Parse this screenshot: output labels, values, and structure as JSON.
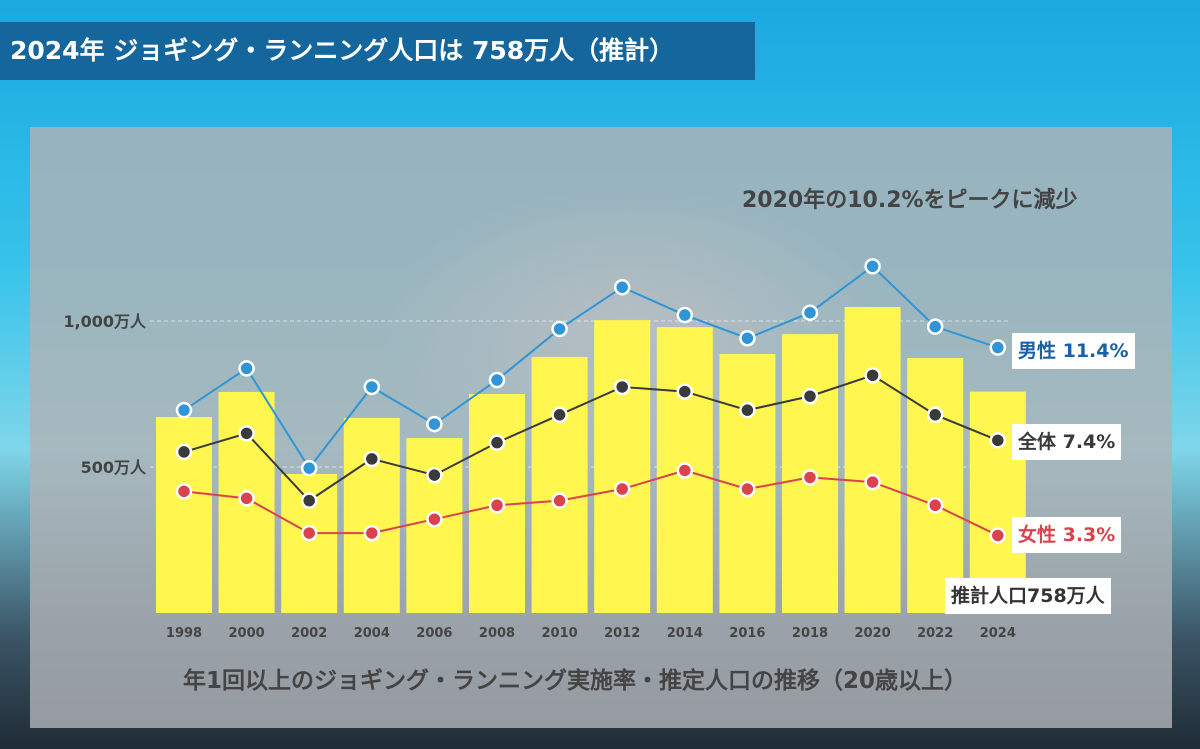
{
  "title": "2024年 ジョギング・ランニング人口は 758万人（推計）",
  "annotation": "2020年の10.2%をピークに減少",
  "caption": "年1回以上のジョギング・ランニング実施率・推定人口の推移（20歳以上）",
  "chart_data": {
    "type": "bar+line",
    "categories": [
      "1998",
      "2000",
      "2002",
      "2004",
      "2006",
      "2008",
      "2010",
      "2012",
      "2014",
      "2016",
      "2018",
      "2020",
      "2022",
      "2024"
    ],
    "bars": {
      "unit": "万人",
      "color": "#fff64f",
      "values": [
        671,
        757,
        476,
        668,
        599,
        750,
        877,
        1003,
        979,
        887,
        955,
        1048,
        873,
        758
      ]
    },
    "y_ticks": [
      {
        "value": 1000,
        "label": "1,000万人"
      },
      {
        "value": 500,
        "label": "500万人"
      }
    ],
    "series": [
      {
        "name": "男性",
        "color": "#2f95d6",
        "end_label": "男性 11.4%",
        "label_color": "#1a5fa8",
        "values": [
          8.7,
          10.5,
          6.2,
          9.7,
          8.1,
          10.0,
          12.2,
          14.0,
          12.8,
          11.8,
          12.9,
          14.9,
          12.3,
          11.4
        ]
      },
      {
        "name": "全体",
        "color": "#3a3a3a",
        "end_label": "全体 7.4%",
        "label_color": "#3a3a3a",
        "values": [
          6.9,
          7.7,
          4.8,
          6.6,
          5.9,
          7.3,
          8.5,
          9.7,
          9.5,
          8.7,
          9.3,
          10.2,
          8.5,
          7.4
        ]
      },
      {
        "name": "女性",
        "color": "#d9434e",
        "end_label": "女性 3.3%",
        "label_color": "#d9434e",
        "values": [
          5.2,
          4.9,
          3.4,
          3.4,
          4.0,
          4.6,
          4.8,
          5.3,
          6.1,
          5.3,
          5.8,
          5.6,
          4.6,
          3.3
        ]
      }
    ],
    "bar_end_label": "推計人口758万人",
    "grid": true
  }
}
